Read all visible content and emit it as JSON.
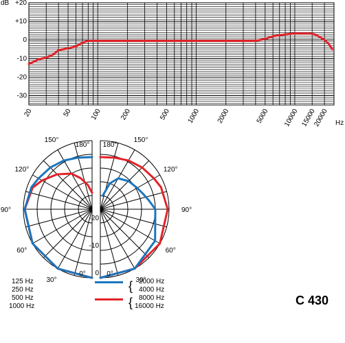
{
  "chart_data": [
    {
      "type": "line",
      "kind": "frequency-response",
      "xlabel": "Hz",
      "ylabel": "dB",
      "x_scale": "log",
      "xlim": [
        20,
        25000
      ],
      "ylim": [
        -35,
        20
      ],
      "grid": true,
      "y_ticks": [
        "+20",
        "+10",
        "0",
        "-10",
        "-20",
        "-30"
      ],
      "x_ticks": [
        "20",
        "50",
        "100",
        "200",
        "500",
        "1000",
        "2000",
        "5000",
        "10000",
        "15000",
        "20000"
      ],
      "series": [
        {
          "color": "#e32228",
          "x": [
            20,
            25,
            30,
            35,
            40,
            50,
            60,
            70,
            80,
            100,
            200,
            500,
            1000,
            2000,
            4000,
            5000,
            6000,
            8000,
            10000,
            12000,
            14000,
            16000,
            18000,
            20000,
            22000,
            24000
          ],
          "y": [
            -13,
            -10.5,
            -9.5,
            -8,
            -5.5,
            -4.5,
            -3.5,
            -1.5,
            -0.5,
            -0.5,
            -0.5,
            -0.5,
            -0.5,
            -0.5,
            -0.5,
            0.5,
            2,
            3,
            3.5,
            3.5,
            3.5,
            3,
            1.5,
            0,
            -2,
            -5
          ]
        }
      ]
    },
    {
      "type": "polar",
      "kind": "polar-pattern",
      "radial_unit": "dB",
      "radial_ticks": [
        "0",
        "-10",
        "-20"
      ],
      "angle_ticks": [
        "0°",
        "30°",
        "60°",
        "90°",
        "120°",
        "150°",
        "180°"
      ],
      "series": [
        {
          "side": "left",
          "color": "#e32228",
          "angles": [
            0,
            30,
            60,
            90,
            110,
            120,
            135,
            150,
            160,
            170,
            180
          ],
          "values": [
            0,
            0,
            0,
            -0.5,
            -2,
            -4,
            -7,
            -10,
            -13,
            -16,
            -19
          ]
        },
        {
          "side": "left",
          "color": "#1b75bc",
          "angles": [
            0,
            30,
            60,
            90,
            110,
            120,
            135,
            150,
            165,
            180
          ],
          "values": [
            0,
            0,
            0,
            -0.5,
            -1.5,
            -2.5,
            -3.5,
            -4.5,
            -5.5,
            -6
          ]
        },
        {
          "side": "right",
          "color": "#e32228",
          "angles": [
            0,
            30,
            60,
            90,
            110,
            120,
            135,
            150,
            165,
            180
          ],
          "values": [
            0,
            0,
            0,
            -0.5,
            -1.5,
            -2.5,
            -3.5,
            -4.5,
            -5.5,
            -6
          ]
        },
        {
          "side": "right",
          "color": "#1b75bc",
          "angles": [
            0,
            30,
            60,
            90,
            100,
            110,
            120,
            135,
            150,
            160,
            170
          ],
          "values": [
            0,
            0,
            -2,
            -5,
            -7,
            -8.5,
            -9.5,
            -10.5,
            -12,
            -15,
            -20
          ]
        }
      ]
    }
  ],
  "legend": {
    "left_lines": [
      "125 Hz",
      "250 Hz",
      "500 Hz",
      "1000 Hz"
    ],
    "blue_lines": [
      "2000 Hz",
      "4000 Hz"
    ],
    "red_lines": [
      "8000 Hz",
      "16000 Hz"
    ],
    "brace": "{",
    "blue_color": "#1b75bc",
    "red_color": "#e32228"
  },
  "model_label": "C 430"
}
